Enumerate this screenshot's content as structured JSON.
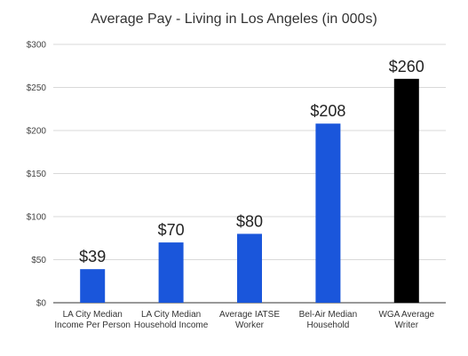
{
  "chart_data": {
    "type": "bar",
    "title": "Average Pay - Living in Los Angeles (in 000s)",
    "categories": [
      [
        "LA City Median",
        "Income Per Person"
      ],
      [
        "LA City Median",
        "Household Income"
      ],
      [
        "Average IATSE",
        "Worker"
      ],
      [
        "Bel-Air Median",
        "Household"
      ],
      [
        "WGA Average",
        "Writer"
      ]
    ],
    "values": [
      39,
      70,
      80,
      208,
      260
    ],
    "data_labels": [
      "$39",
      "$70",
      "$80",
      "$208",
      "$260"
    ],
    "bar_colors": [
      "#1a56db",
      "#1a56db",
      "#1a56db",
      "#1a56db",
      "#000000"
    ],
    "ylim": [
      0,
      300
    ],
    "yticks": [
      0,
      50,
      100,
      150,
      200,
      250,
      300
    ],
    "ytick_labels": [
      "$0",
      "$50",
      "$100",
      "$150",
      "$200",
      "$250",
      "$300"
    ],
    "xlabel": "",
    "ylabel": "",
    "grid": true,
    "legend": "none"
  }
}
